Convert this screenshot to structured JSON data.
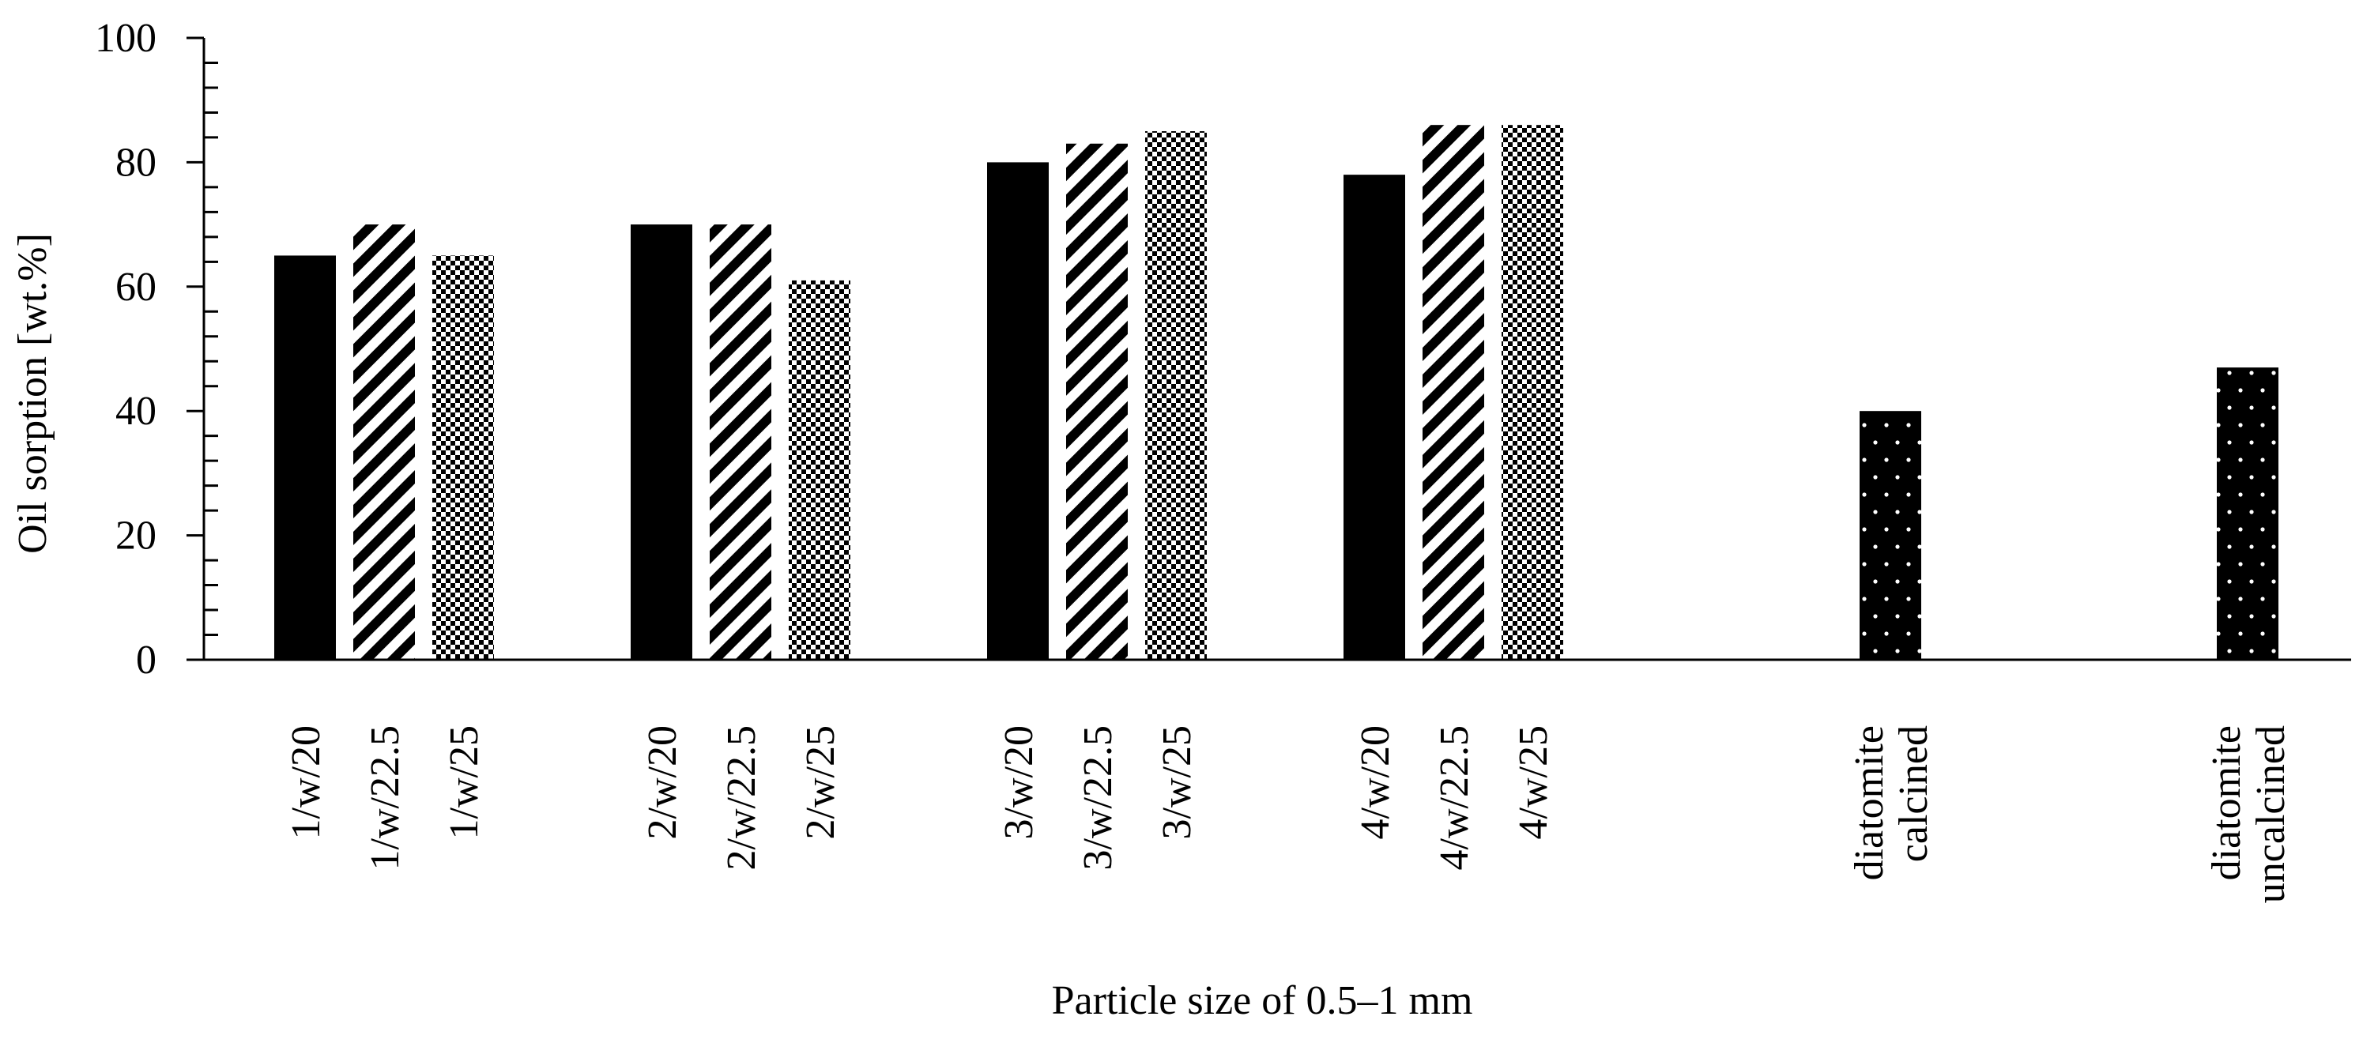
{
  "chart_data": {
    "type": "bar",
    "title": "",
    "xlabel": "Particle size of 0.5–1 mm",
    "ylabel": "Oil sorption [wt.%]",
    "ylim": [
      0,
      100
    ],
    "yticks": [
      0,
      20,
      40,
      60,
      80,
      100
    ],
    "grid": false,
    "legend": "none",
    "bars": [
      {
        "label": "1/w/20",
        "value": 65,
        "pattern": "solid"
      },
      {
        "label": "1/w/22.5",
        "value": 70,
        "pattern": "diagonal"
      },
      {
        "label": "1/w/25",
        "value": 65,
        "pattern": "checker"
      },
      {
        "label": "2/w/20",
        "value": 70,
        "pattern": "solid"
      },
      {
        "label": "2/w/22.5",
        "value": 70,
        "pattern": "diagonal"
      },
      {
        "label": "2/w/25",
        "value": 61,
        "pattern": "checker"
      },
      {
        "label": "3/w/20",
        "value": 80,
        "pattern": "solid"
      },
      {
        "label": "3/w/22.5",
        "value": 83,
        "pattern": "diagonal"
      },
      {
        "label": "3/w/25",
        "value": 85,
        "pattern": "checker"
      },
      {
        "label": "4/w/20",
        "value": 78,
        "pattern": "solid"
      },
      {
        "label": "4/w/22.5",
        "value": 86,
        "pattern": "diagonal"
      },
      {
        "label": "4/w/25",
        "value": 86,
        "pattern": "checker"
      },
      {
        "label": "diatomite calcined",
        "value": 40,
        "pattern": "dotted"
      },
      {
        "label": "diatomite uncalcined",
        "value": 47,
        "pattern": "dotted"
      }
    ]
  }
}
